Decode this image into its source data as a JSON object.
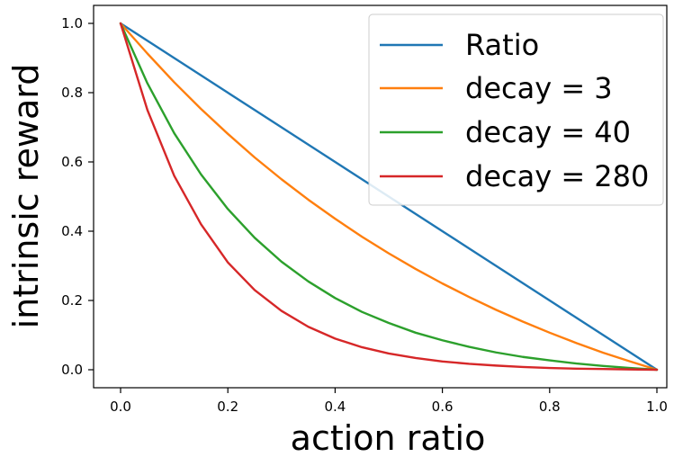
{
  "chart_data": {
    "type": "line",
    "xlabel": "action ratio",
    "ylabel": "intrinsic reward",
    "xlim": [
      -0.05,
      1.04
    ],
    "ylim": [
      -0.05,
      1.04
    ],
    "xticks": [
      0.0,
      0.2,
      0.4,
      0.6,
      0.8,
      1.0
    ],
    "yticks": [
      0.0,
      0.2,
      0.4,
      0.6,
      0.8,
      1.0
    ],
    "xtick_labels": [
      "0.0",
      "0.2",
      "0.4",
      "0.6",
      "0.8",
      "1.0"
    ],
    "ytick_labels": [
      "0.0",
      "0.2",
      "0.4",
      "0.6",
      "0.8",
      "1.0"
    ],
    "grid": false,
    "legend_position": "top-right",
    "x": [
      0.0,
      0.05,
      0.1,
      0.15,
      0.2,
      0.25,
      0.3,
      0.35,
      0.4,
      0.45,
      0.5,
      0.55,
      0.6,
      0.65,
      0.7,
      0.75,
      0.8,
      0.85,
      0.9,
      0.95,
      1.0
    ],
    "series": [
      {
        "name": "Ratio",
        "color": "#1f77b4",
        "values": [
          1.0,
          0.95,
          0.9,
          0.85,
          0.8,
          0.75,
          0.7,
          0.65,
          0.6,
          0.55,
          0.5,
          0.45,
          0.4,
          0.35,
          0.3,
          0.25,
          0.2,
          0.15,
          0.1,
          0.05,
          0.0
        ]
      },
      {
        "name": "decay = 3",
        "color": "#ff7f0e",
        "values": [
          1.0,
          0.913,
          0.83,
          0.753,
          0.681,
          0.613,
          0.55,
          0.491,
          0.436,
          0.384,
          0.336,
          0.291,
          0.249,
          0.21,
          0.173,
          0.139,
          0.107,
          0.077,
          0.049,
          0.024,
          0.0
        ]
      },
      {
        "name": "decay = 40",
        "color": "#2ca02c",
        "values": [
          1.0,
          0.827,
          0.683,
          0.564,
          0.464,
          0.381,
          0.312,
          0.255,
          0.207,
          0.167,
          0.135,
          0.107,
          0.085,
          0.066,
          0.05,
          0.037,
          0.027,
          0.018,
          0.011,
          0.005,
          0.0
        ]
      },
      {
        "name": "decay = 280",
        "color": "#d62728",
        "values": [
          1.0,
          0.75,
          0.56,
          0.42,
          0.31,
          0.23,
          0.17,
          0.124,
          0.09,
          0.065,
          0.047,
          0.034,
          0.024,
          0.017,
          0.012,
          0.008,
          0.005,
          0.003,
          0.002,
          0.001,
          0.0
        ]
      }
    ]
  }
}
